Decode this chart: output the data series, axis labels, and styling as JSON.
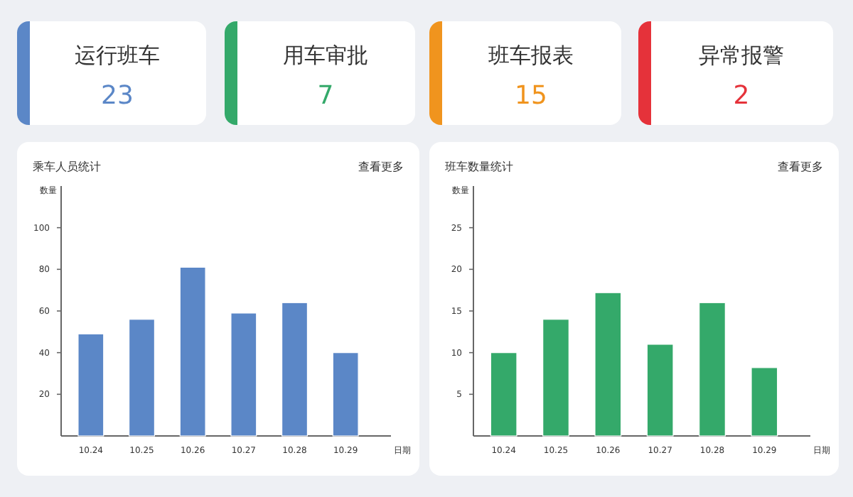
{
  "chart_data": [
    {
      "type": "other",
      "title": "运行班车",
      "annotations": [
        "23"
      ],
      "color": "#5b87c7"
    },
    {
      "type": "other",
      "title": "用车审批",
      "annotations": [
        "7"
      ],
      "color": "#34a96a"
    },
    {
      "type": "other",
      "title": "班车报表",
      "annotations": [
        "15"
      ],
      "color": "#f0941e"
    },
    {
      "type": "other",
      "title": "异常报警",
      "annotations": [
        "2"
      ],
      "color": "#e5323a"
    },
    {
      "type": "bar",
      "title": "乘车人员统计",
      "annotations": [
        "查看更多"
      ],
      "ylabel": "数量",
      "xlabel": "日期",
      "categories": [
        "10.24",
        "10.25",
        "10.26",
        "10.27",
        "10.28",
        "10.29"
      ],
      "values": [
        49,
        56,
        81,
        59,
        64,
        40
      ],
      "color": "#5b87c7",
      "ylim": [
        0,
        120
      ],
      "yticks": [
        20,
        40,
        60,
        80,
        100
      ]
    },
    {
      "type": "bar",
      "title": "班车数量统计",
      "annotations": [
        "查看更多"
      ],
      "ylabel": "数量",
      "xlabel": "日期",
      "categories": [
        "10.24",
        "10.25",
        "10.26",
        "10.27",
        "10.28",
        "10.29"
      ],
      "values": [
        10,
        14,
        17.2,
        11,
        16,
        8.2
      ],
      "color": "#34a96a",
      "ylim": [
        0,
        30
      ],
      "yticks": [
        5,
        10,
        15,
        20,
        25
      ]
    }
  ]
}
